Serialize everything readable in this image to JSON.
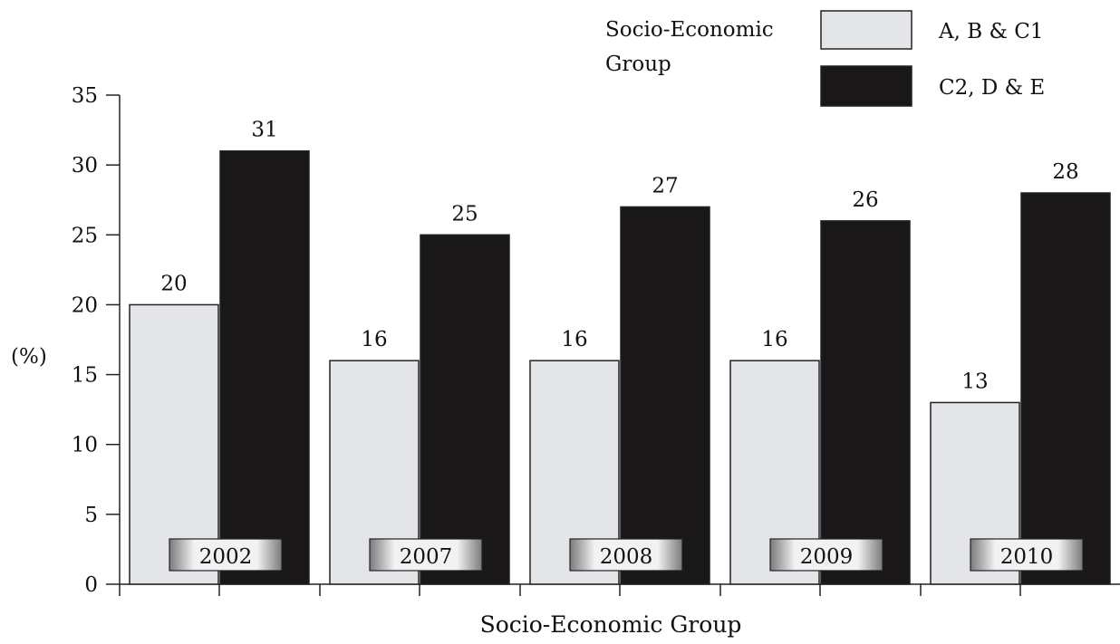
{
  "chart_data": {
    "type": "bar",
    "categories": [
      "2002",
      "2007",
      "2008",
      "2009",
      "2010"
    ],
    "series": [
      {
        "name": "A, B & C1",
        "values": [
          20,
          16,
          16,
          16,
          13
        ],
        "color": "#e4e5e9"
      },
      {
        "name": "C2, D & E",
        "values": [
          31,
          25,
          27,
          26,
          28
        ],
        "color": "#1a1718"
      }
    ],
    "xlabel": "Socio-Economic Group",
    "ylabel": "(%)",
    "ylim": [
      0,
      35
    ],
    "yticks": [
      0,
      5,
      10,
      15,
      20,
      25,
      30,
      35
    ],
    "legend_title_line1": "Socio-Economic",
    "legend_title_line2": "Group",
    "legend_position": "top-right",
    "grid": false
  }
}
